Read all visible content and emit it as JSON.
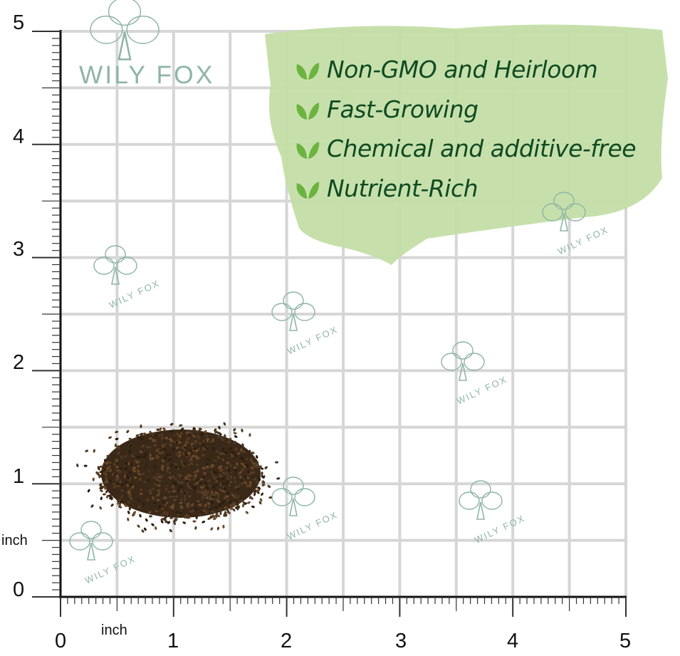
{
  "brand": {
    "watermark_text": "WILY FOX",
    "watermark_color": "#8fb5a6"
  },
  "features": [
    {
      "icon": "leaf-icon",
      "text": "Non-GMO and Heirloom"
    },
    {
      "icon": "leaf-icon",
      "text": "Fast-Growing"
    },
    {
      "icon": "leaf-icon",
      "text": "Chemical and additive-free"
    },
    {
      "icon": "leaf-icon",
      "text": "Nutrient-Rich"
    }
  ],
  "ruler": {
    "unit_label_y": "inch",
    "unit_label_x": "inch",
    "y_ticks": [
      "0",
      "1",
      "2",
      "3",
      "4",
      "5"
    ],
    "x_ticks": [
      "0",
      "1",
      "2",
      "3",
      "4",
      "5"
    ]
  },
  "colors": {
    "banner": "#c4dea6",
    "text": "#0f4a22",
    "leaf": "#6cb33f",
    "grid": "#d6d6d6",
    "seeds": "#3e2a1a"
  }
}
